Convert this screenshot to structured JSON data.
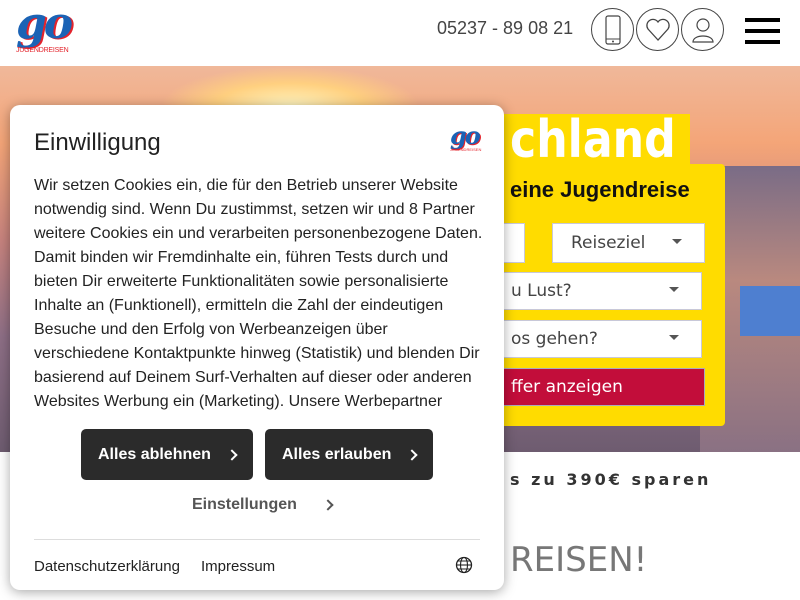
{
  "header": {
    "logo_text": "go",
    "logo_sub": "JUGENDREISEN",
    "phone": "05237 - 89 08 21",
    "icons": [
      "phone-icon",
      "heart-icon",
      "user-icon",
      "menu-icon"
    ]
  },
  "hero": {
    "title_fragment": "chland",
    "search": {
      "title_fragment": "eine Jugendreise",
      "destination": "Reiseziel",
      "interest_fragment": "u Lust?",
      "date_fragment": "os gehen?",
      "submit_fragment": "ffer anzeigen"
    }
  },
  "promo_fragment": "s zu 390€ sparen",
  "section_heading_fragment": "REISEN!",
  "consent": {
    "title": "Einwilligung",
    "body": "Wir setzen Cookies ein, die für den Betrieb unserer Website notwendig sind. Wenn Du zustimmst, setzen wir und 8 Partner weitere Cookies ein und verarbeiten personenbezogene Daten. Damit binden wir Fremdinhalte ein, führen Tests durch und bieten Dir erweiterte Funktionalitäten sowie personalisierte Inhalte an (Funktionell), ermitteln die Zahl der eindeutigen Besuche und den Erfolg von Werbeanzeigen über verschiedene Kontaktpunkte hinweg (Statistik) und blenden Dir basierend auf Deinem Surf-Verhalten auf dieser oder anderen Websites Werbung ein (Marketing). Unsere Werbepartner",
    "reject_label": "Alles ablehnen",
    "accept_label": "Alles erlauben",
    "settings_label": "Einstellungen",
    "privacy_label": "Datenschutzerklärung",
    "imprint_label": "Impressum"
  },
  "colors": {
    "brand_blue": "#1b63b5",
    "brand_red": "#e3232b",
    "yellow": "#ffdc00",
    "cta_red": "#c20d3a",
    "dark_button": "#2b2b2b"
  }
}
